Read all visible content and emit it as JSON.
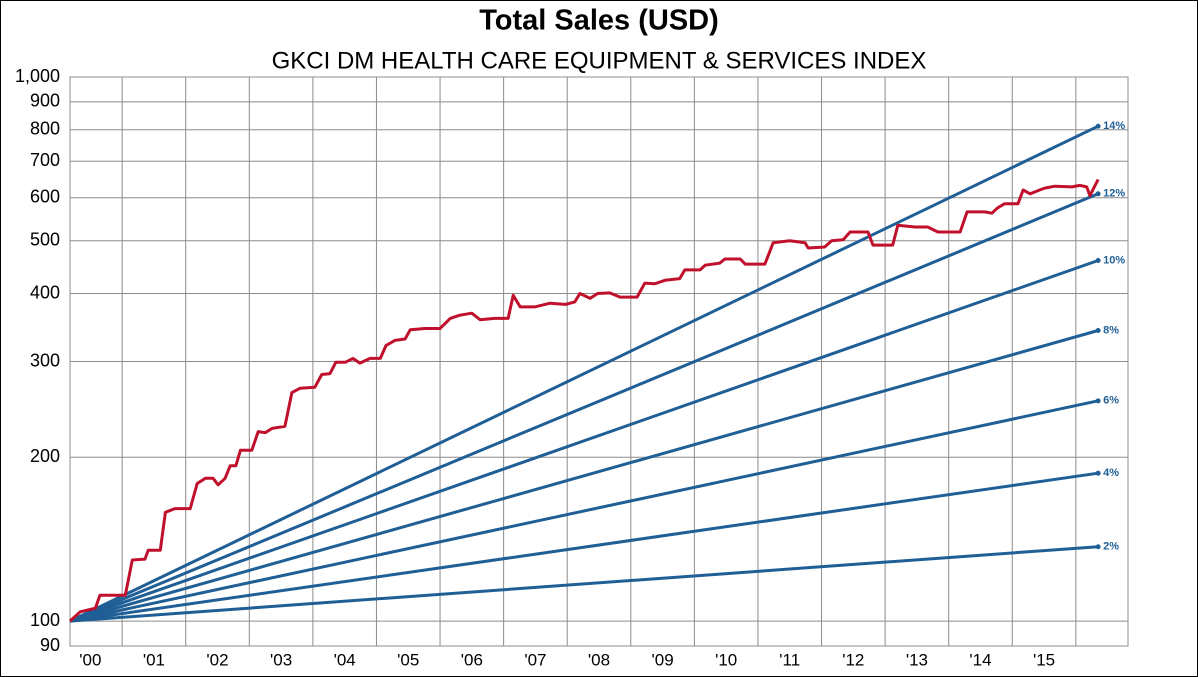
{
  "chart_data": {
    "type": "line",
    "title": "Total Sales (USD)",
    "subtitle": "GKCI DM HEALTH CARE EQUIPMENT & SERVICES INDEX",
    "log_scale": true,
    "grid": true,
    "xlim": [
      2000.18,
      2016.82
    ],
    "ylim": [
      90,
      1000
    ],
    "yticks": [
      90,
      100,
      200,
      300,
      400,
      500,
      600,
      700,
      800,
      900,
      {
        "value": 1000,
        "label": "1,000"
      }
    ],
    "xticks": [
      {
        "value": 2000.5,
        "label": "'00"
      },
      {
        "value": 2001.5,
        "label": "'01"
      },
      {
        "value": 2002.5,
        "label": "'02"
      },
      {
        "value": 2003.5,
        "label": "'03"
      },
      {
        "value": 2004.5,
        "label": "'04"
      },
      {
        "value": 2005.5,
        "label": "'05"
      },
      {
        "value": 2006.5,
        "label": "'06"
      },
      {
        "value": 2007.5,
        "label": "'07"
      },
      {
        "value": 2008.5,
        "label": "'08"
      },
      {
        "value": 2009.5,
        "label": "'09"
      },
      {
        "value": 2010.5,
        "label": "'10"
      },
      {
        "value": 2011.5,
        "label": "'11"
      },
      {
        "value": 2012.5,
        "label": "'12"
      },
      {
        "value": 2013.5,
        "label": "'13"
      },
      {
        "value": 2014.5,
        "label": "'14"
      },
      {
        "value": 2015.5,
        "label": "'15"
      }
    ],
    "xgrid": [
      2001,
      2002,
      2003,
      2004,
      2005,
      2006,
      2007,
      2008,
      2009,
      2010,
      2011,
      2012,
      2013,
      2014,
      2015,
      2016
    ],
    "series": [
      {
        "name": "14%",
        "color": "#1f5f96",
        "x": [
          2000.18,
          2016.35
        ],
        "values": [
          100,
          812
        ]
      },
      {
        "name": "12%",
        "color": "#1f5f96",
        "x": [
          2000.18,
          2016.35
        ],
        "values": [
          100,
          610
        ]
      },
      {
        "name": "10%",
        "color": "#1f5f96",
        "x": [
          2000.18,
          2016.35
        ],
        "values": [
          100,
          460
        ]
      },
      {
        "name": "8%",
        "color": "#1f5f96",
        "x": [
          2000.18,
          2016.35
        ],
        "values": [
          100,
          342
        ]
      },
      {
        "name": "6%",
        "color": "#1f5f96",
        "x": [
          2000.18,
          2016.35
        ],
        "values": [
          100,
          254
        ]
      },
      {
        "name": "4%",
        "color": "#1f5f96",
        "x": [
          2000.18,
          2016.35
        ],
        "values": [
          100,
          187
        ]
      },
      {
        "name": "2%",
        "color": "#1f5f96",
        "x": [
          2000.18,
          2016.35
        ],
        "values": [
          100,
          137
        ]
      },
      {
        "color": "#c0102c",
        "x": [
          2000.18,
          2000.34,
          2000.58,
          2000.65,
          2001.05,
          2001.16,
          2001.36,
          2001.41,
          2001.6,
          2001.68,
          2001.83,
          2002.07,
          2002.18,
          2002.31,
          2002.43,
          2002.51,
          2002.62,
          2002.7,
          2002.79,
          2002.86,
          2003.04,
          2003.14,
          2003.25,
          2003.36,
          2003.56,
          2003.67,
          2003.8,
          2004.03,
          2004.14,
          2004.27,
          2004.36,
          2004.51,
          2004.63,
          2004.74,
          2004.9,
          2005.06,
          2005.15,
          2005.29,
          2005.45,
          2005.53,
          2005.76,
          2006.0,
          2006.16,
          2006.31,
          2006.5,
          2006.63,
          2006.86,
          2007.07,
          2007.15,
          2007.26,
          2007.49,
          2007.73,
          2007.97,
          2008.12,
          2008.2,
          2008.36,
          2008.48,
          2008.67,
          2008.83,
          2009.1,
          2009.22,
          2009.38,
          2009.54,
          2009.77,
          2009.85,
          2010.09,
          2010.17,
          2010.4,
          2010.48,
          2010.72,
          2010.8,
          2011.11,
          2011.24,
          2011.5,
          2011.74,
          2011.79,
          2012.05,
          2012.16,
          2012.34,
          2012.45,
          2012.73,
          2012.81,
          2013.12,
          2013.2,
          2013.47,
          2013.67,
          2013.83,
          2014.18,
          2014.29,
          2014.57,
          2014.68,
          2014.77,
          2014.88,
          2015.09,
          2015.17,
          2015.28,
          2015.43,
          2015.51,
          2015.67,
          2015.94,
          2016.06,
          2016.17,
          2016.22,
          2016.35
        ],
        "values": [
          100,
          104,
          105.6,
          111.6,
          111.6,
          129.5,
          130,
          135,
          135,
          158.5,
          161,
          161,
          179,
          183,
          183,
          178,
          183,
          193,
          193,
          206,
          206,
          223,
          222,
          226,
          228,
          263,
          268,
          269,
          284,
          285,
          299,
          299,
          304,
          298,
          304,
          304,
          321,
          328,
          330,
          343,
          345,
          345,
          360,
          365,
          368,
          358,
          360,
          360,
          397,
          378,
          378,
          384,
          382,
          386,
          400,
          392,
          400,
          401,
          394,
          394,
          418,
          417,
          423,
          426,
          442,
          442,
          451,
          455,
          463,
          463,
          453,
          453,
          496,
          500,
          496,
          485,
          487,
          500,
          502,
          519,
          519,
          491,
          491,
          534,
          530,
          530,
          519,
          519,
          565,
          565,
          562,
          575,
          585,
          585,
          620,
          610,
          620,
          625,
          630,
          628,
          632,
          628,
          605,
          648
        ]
      }
    ]
  }
}
